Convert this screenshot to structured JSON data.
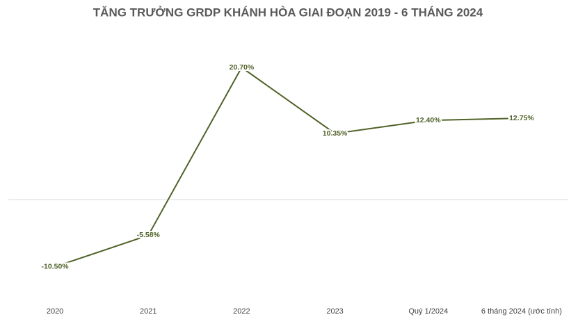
{
  "chart_data": {
    "type": "line",
    "title": "TĂNG TRƯỞNG GRDP KHÁNH HÒA GIAI ĐOẠN 2019 - 6 THÁNG 2024",
    "categories": [
      "2020",
      "2021",
      "2022",
      "2023",
      "Quý 1/2024",
      "6 tháng 2024 (ước tính)"
    ],
    "series": [
      {
        "color": "#4f6228",
        "values": [
          -10.5,
          -5.58,
          20.7,
          10.35,
          12.4,
          12.75
        ],
        "value_labels": [
          "-10.50%",
          "-5.58%",
          "20.70%",
          "10.35%",
          "12.40%",
          "12.75%"
        ]
      }
    ],
    "ylim": [
      -15,
      25
    ]
  }
}
